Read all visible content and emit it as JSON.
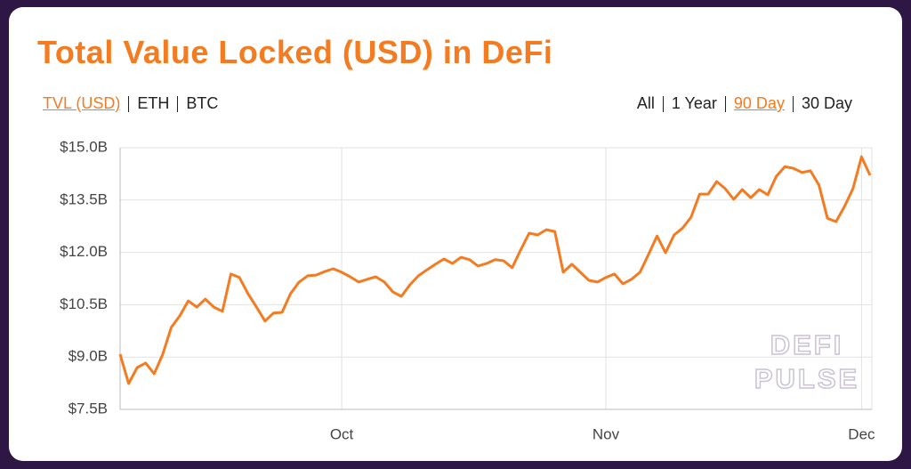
{
  "header": {
    "title": "Total Value Locked (USD) in DeFi"
  },
  "toggles": {
    "units": [
      {
        "label": "TVL (USD)",
        "active": true
      },
      {
        "label": "ETH",
        "active": false
      },
      {
        "label": "BTC",
        "active": false
      }
    ],
    "ranges": [
      {
        "label": "All",
        "active": false
      },
      {
        "label": "1 Year",
        "active": false
      },
      {
        "label": "90 Day",
        "active": true
      },
      {
        "label": "30 Day",
        "active": false
      }
    ]
  },
  "watermark": [
    "DEFI",
    "PULSE"
  ],
  "chart_data": {
    "type": "line",
    "categories": [
      null,
      null,
      null,
      null,
      null,
      null,
      null,
      null,
      null,
      null,
      null,
      null,
      null,
      null,
      null,
      null,
      null,
      null,
      null,
      null,
      null,
      null,
      null,
      null,
      null,
      null,
      "Oct",
      null,
      null,
      null,
      null,
      null,
      null,
      null,
      null,
      null,
      null,
      null,
      null,
      null,
      null,
      null,
      null,
      null,
      null,
      null,
      null,
      null,
      null,
      null,
      null,
      null,
      null,
      null,
      null,
      null,
      null,
      "Nov",
      null,
      null,
      null,
      null,
      null,
      null,
      null,
      null,
      null,
      null,
      null,
      null,
      null,
      null,
      null,
      null,
      null,
      null,
      null,
      null,
      null,
      null,
      null,
      null,
      null,
      null,
      null,
      null,
      null,
      "Dec",
      null
    ],
    "series": [
      {
        "name": "TVL (USD)",
        "color": "#f47b20",
        "values": [
          9.08,
          8.24,
          8.7,
          8.83,
          8.52,
          9.08,
          9.85,
          10.18,
          10.61,
          10.43,
          10.66,
          10.43,
          10.31,
          11.38,
          11.28,
          10.82,
          10.43,
          10.03,
          10.26,
          10.28,
          10.82,
          11.15,
          11.33,
          11.35,
          11.45,
          11.53,
          11.43,
          11.3,
          11.15,
          11.23,
          11.3,
          11.15,
          10.87,
          10.74,
          11.07,
          11.33,
          11.5,
          11.66,
          11.81,
          11.68,
          11.86,
          11.79,
          11.61,
          11.68,
          11.79,
          11.76,
          11.56,
          12.07,
          12.55,
          12.5,
          12.65,
          12.6,
          11.43,
          11.66,
          11.43,
          11.2,
          11.15,
          11.28,
          11.38,
          11.1,
          11.23,
          11.43,
          11.94,
          12.47,
          11.99,
          12.5,
          12.7,
          13.01,
          13.67,
          13.67,
          14.03,
          13.83,
          13.52,
          13.8,
          13.57,
          13.8,
          13.65,
          14.18,
          14.46,
          14.41,
          14.29,
          14.34,
          13.93,
          12.98,
          12.88,
          13.32,
          13.83,
          14.74,
          14.21
        ]
      }
    ],
    "ylim": [
      7.5,
      15.0
    ],
    "yticks": [
      {
        "value": 7.5,
        "label": "$7.5B"
      },
      {
        "value": 9,
        "label": "$9.0B"
      },
      {
        "value": 10.5,
        "label": "$10.5B"
      },
      {
        "value": 12,
        "label": "$12.0B"
      },
      {
        "value": 13.5,
        "label": "$13.5B"
      },
      {
        "value": 15,
        "label": "$15.0B"
      }
    ],
    "grid": true
  }
}
